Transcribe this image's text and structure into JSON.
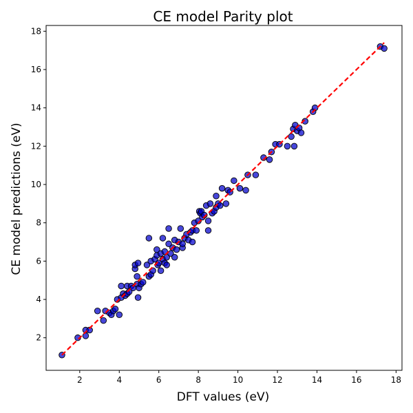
{
  "chart_data": {
    "type": "scatter",
    "title": "CE model Parity plot",
    "xlabel": "DFT values (eV)",
    "ylabel": "CE model predictions (eV)",
    "xlim": [
      0.3,
      18.3
    ],
    "ylim": [
      0.3,
      18.3
    ],
    "xticks": [
      2,
      4,
      6,
      8,
      10,
      12,
      14,
      16,
      18
    ],
    "yticks": [
      2,
      4,
      6,
      8,
      10,
      12,
      14,
      16,
      18
    ],
    "grid": false,
    "colors": {
      "points": "#0000cc",
      "point_edge": "#000000",
      "parity_line": "#ff0000"
    },
    "parity_line": {
      "x": [
        1.1,
        17.4
      ],
      "y": [
        1.1,
        17.4
      ],
      "style": "dashed"
    },
    "points": [
      {
        "x": 1.1,
        "y": 1.1
      },
      {
        "x": 1.9,
        "y": 2.0
      },
      {
        "x": 2.3,
        "y": 2.1
      },
      {
        "x": 2.3,
        "y": 2.4
      },
      {
        "x": 2.5,
        "y": 2.4
      },
      {
        "x": 2.9,
        "y": 3.4
      },
      {
        "x": 3.2,
        "y": 2.9
      },
      {
        "x": 3.3,
        "y": 3.4
      },
      {
        "x": 3.5,
        "y": 3.3
      },
      {
        "x": 3.6,
        "y": 3.2
      },
      {
        "x": 3.7,
        "y": 3.4
      },
      {
        "x": 3.8,
        "y": 3.5
      },
      {
        "x": 3.9,
        "y": 4.0
      },
      {
        "x": 4.0,
        "y": 3.2
      },
      {
        "x": 4.1,
        "y": 4.1
      },
      {
        "x": 4.1,
        "y": 4.7
      },
      {
        "x": 4.2,
        "y": 4.3
      },
      {
        "x": 4.3,
        "y": 4.2
      },
      {
        "x": 4.4,
        "y": 4.3
      },
      {
        "x": 4.4,
        "y": 4.7
      },
      {
        "x": 4.5,
        "y": 4.4
      },
      {
        "x": 4.6,
        "y": 4.7
      },
      {
        "x": 4.7,
        "y": 4.6
      },
      {
        "x": 4.8,
        "y": 5.6
      },
      {
        "x": 4.8,
        "y": 5.8
      },
      {
        "x": 4.9,
        "y": 4.8
      },
      {
        "x": 4.9,
        "y": 5.2
      },
      {
        "x": 4.95,
        "y": 4.1
      },
      {
        "x": 4.95,
        "y": 5.9
      },
      {
        "x": 5.0,
        "y": 4.6
      },
      {
        "x": 5.1,
        "y": 4.8
      },
      {
        "x": 5.2,
        "y": 4.9
      },
      {
        "x": 5.4,
        "y": 5.8
      },
      {
        "x": 5.5,
        "y": 7.2
      },
      {
        "x": 5.5,
        "y": 5.2
      },
      {
        "x": 5.6,
        "y": 5.3
      },
      {
        "x": 5.6,
        "y": 6.0
      },
      {
        "x": 5.7,
        "y": 5.5
      },
      {
        "x": 5.8,
        "y": 6.1
      },
      {
        "x": 5.9,
        "y": 6.3
      },
      {
        "x": 5.9,
        "y": 6.6
      },
      {
        "x": 5.95,
        "y": 5.8
      },
      {
        "x": 6.0,
        "y": 5.9
      },
      {
        "x": 6.1,
        "y": 5.5
      },
      {
        "x": 6.1,
        "y": 6.4
      },
      {
        "x": 6.2,
        "y": 6.1
      },
      {
        "x": 6.2,
        "y": 7.2
      },
      {
        "x": 6.3,
        "y": 5.9
      },
      {
        "x": 6.3,
        "y": 6.5
      },
      {
        "x": 6.4,
        "y": 6.2
      },
      {
        "x": 6.4,
        "y": 5.8
      },
      {
        "x": 6.5,
        "y": 6.9
      },
      {
        "x": 6.5,
        "y": 7.7
      },
      {
        "x": 6.6,
        "y": 6.4
      },
      {
        "x": 6.7,
        "y": 6.7
      },
      {
        "x": 6.8,
        "y": 7.1
      },
      {
        "x": 6.8,
        "y": 6.2
      },
      {
        "x": 6.9,
        "y": 6.6
      },
      {
        "x": 7.0,
        "y": 7.0
      },
      {
        "x": 7.1,
        "y": 7.7
      },
      {
        "x": 7.2,
        "y": 6.7
      },
      {
        "x": 7.2,
        "y": 6.9
      },
      {
        "x": 7.3,
        "y": 7.2
      },
      {
        "x": 7.4,
        "y": 7.4
      },
      {
        "x": 7.5,
        "y": 7.1
      },
      {
        "x": 7.6,
        "y": 7.5
      },
      {
        "x": 7.7,
        "y": 7.0
      },
      {
        "x": 7.7,
        "y": 7.6
      },
      {
        "x": 7.8,
        "y": 8.0
      },
      {
        "x": 7.9,
        "y": 7.6
      },
      {
        "x": 8.0,
        "y": 8.1
      },
      {
        "x": 8.05,
        "y": 8.6
      },
      {
        "x": 8.1,
        "y": 8.5
      },
      {
        "x": 8.15,
        "y": 8.6
      },
      {
        "x": 8.2,
        "y": 8.3
      },
      {
        "x": 8.3,
        "y": 8.4
      },
      {
        "x": 8.4,
        "y": 8.9
      },
      {
        "x": 8.5,
        "y": 8.1
      },
      {
        "x": 8.5,
        "y": 7.6
      },
      {
        "x": 8.6,
        "y": 9.0
      },
      {
        "x": 8.7,
        "y": 8.5
      },
      {
        "x": 8.8,
        "y": 8.6
      },
      {
        "x": 8.9,
        "y": 9.4
      },
      {
        "x": 8.9,
        "y": 8.8
      },
      {
        "x": 9.0,
        "y": 9.0
      },
      {
        "x": 9.1,
        "y": 8.9
      },
      {
        "x": 9.2,
        "y": 9.8
      },
      {
        "x": 9.4,
        "y": 9.0
      },
      {
        "x": 9.5,
        "y": 9.7
      },
      {
        "x": 9.6,
        "y": 9.6
      },
      {
        "x": 9.8,
        "y": 10.2
      },
      {
        "x": 10.1,
        "y": 9.8
      },
      {
        "x": 10.4,
        "y": 9.7
      },
      {
        "x": 10.5,
        "y": 10.5
      },
      {
        "x": 10.9,
        "y": 10.5
      },
      {
        "x": 11.3,
        "y": 11.4
      },
      {
        "x": 11.6,
        "y": 11.3
      },
      {
        "x": 11.7,
        "y": 11.7
      },
      {
        "x": 11.9,
        "y": 12.1
      },
      {
        "x": 12.1,
        "y": 12.1
      },
      {
        "x": 12.5,
        "y": 12.0
      },
      {
        "x": 12.7,
        "y": 12.5
      },
      {
        "x": 12.8,
        "y": 12.9
      },
      {
        "x": 12.85,
        "y": 12.0
      },
      {
        "x": 12.9,
        "y": 13.1
      },
      {
        "x": 13.0,
        "y": 12.8
      },
      {
        "x": 13.1,
        "y": 12.95
      },
      {
        "x": 13.2,
        "y": 12.7
      },
      {
        "x": 13.4,
        "y": 13.3
      },
      {
        "x": 13.8,
        "y": 13.8
      },
      {
        "x": 13.9,
        "y": 14.0
      },
      {
        "x": 17.2,
        "y": 17.2
      },
      {
        "x": 17.4,
        "y": 17.1
      }
    ]
  }
}
